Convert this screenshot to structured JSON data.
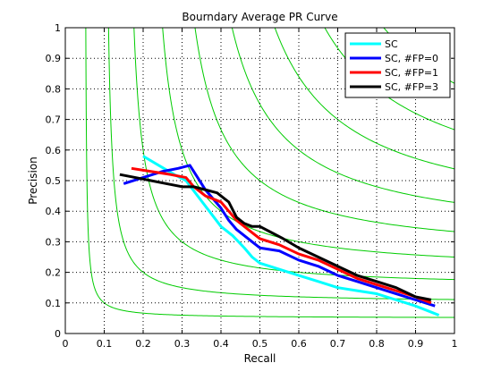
{
  "chart_data": {
    "type": "line",
    "title": "Bourndary Average PR Curve",
    "xlabel": "Recall",
    "ylabel": "Precision",
    "xlim": [
      0,
      1
    ],
    "ylim": [
      0,
      1
    ],
    "grid": true,
    "legend_position": "top-right",
    "x_ticks": [
      "0",
      "0.1",
      "0.2",
      "0.3",
      "0.4",
      "0.5",
      "0.6",
      "0.7",
      "0.8",
      "0.9",
      "1"
    ],
    "y_ticks": [
      "0",
      "0.1",
      "0.2",
      "0.3",
      "0.4",
      "0.5",
      "0.6",
      "0.7",
      "0.8",
      "0.9",
      "1"
    ],
    "iso_f_contours": {
      "color": "#00cc00",
      "values": [
        0.1,
        0.2,
        0.3,
        0.4,
        0.5,
        0.6,
        0.7,
        0.8,
        0.9
      ]
    },
    "series": [
      {
        "name": "SC",
        "color": "#00ffff",
        "points": [
          [
            0.2,
            0.58
          ],
          [
            0.24,
            0.55
          ],
          [
            0.28,
            0.52
          ],
          [
            0.31,
            0.5
          ],
          [
            0.34,
            0.45
          ],
          [
            0.37,
            0.4
          ],
          [
            0.4,
            0.35
          ],
          [
            0.43,
            0.32
          ],
          [
            0.46,
            0.28
          ],
          [
            0.48,
            0.25
          ],
          [
            0.5,
            0.23
          ],
          [
            0.55,
            0.21
          ],
          [
            0.6,
            0.19
          ],
          [
            0.65,
            0.17
          ],
          [
            0.7,
            0.15
          ],
          [
            0.75,
            0.14
          ],
          [
            0.8,
            0.13
          ],
          [
            0.85,
            0.11
          ],
          [
            0.9,
            0.09
          ],
          [
            0.94,
            0.07
          ],
          [
            0.96,
            0.06
          ]
        ]
      },
      {
        "name": "SC, #FP=0",
        "color": "#0000ff",
        "points": [
          [
            0.15,
            0.49
          ],
          [
            0.2,
            0.51
          ],
          [
            0.25,
            0.53
          ],
          [
            0.29,
            0.54
          ],
          [
            0.32,
            0.55
          ],
          [
            0.34,
            0.51
          ],
          [
            0.36,
            0.47
          ],
          [
            0.38,
            0.44
          ],
          [
            0.4,
            0.41
          ],
          [
            0.42,
            0.37
          ],
          [
            0.44,
            0.34
          ],
          [
            0.46,
            0.32
          ],
          [
            0.48,
            0.3
          ],
          [
            0.5,
            0.28
          ],
          [
            0.55,
            0.27
          ],
          [
            0.6,
            0.24
          ],
          [
            0.65,
            0.22
          ],
          [
            0.7,
            0.19
          ],
          [
            0.75,
            0.17
          ],
          [
            0.8,
            0.15
          ],
          [
            0.85,
            0.13
          ],
          [
            0.9,
            0.11
          ],
          [
            0.95,
            0.09
          ]
        ]
      },
      {
        "name": "SC, #FP=1",
        "color": "#ff0000",
        "points": [
          [
            0.17,
            0.54
          ],
          [
            0.22,
            0.53
          ],
          [
            0.27,
            0.52
          ],
          [
            0.31,
            0.51
          ],
          [
            0.33,
            0.48
          ],
          [
            0.36,
            0.45
          ],
          [
            0.4,
            0.43
          ],
          [
            0.42,
            0.4
          ],
          [
            0.44,
            0.37
          ],
          [
            0.46,
            0.35
          ],
          [
            0.48,
            0.33
          ],
          [
            0.5,
            0.31
          ],
          [
            0.55,
            0.29
          ],
          [
            0.6,
            0.26
          ],
          [
            0.65,
            0.24
          ],
          [
            0.7,
            0.21
          ],
          [
            0.75,
            0.18
          ],
          [
            0.8,
            0.16
          ],
          [
            0.85,
            0.14
          ],
          [
            0.9,
            0.12
          ],
          [
            0.94,
            0.1
          ]
        ]
      },
      {
        "name": "SC, #FP=3",
        "color": "#000000",
        "points": [
          [
            0.14,
            0.52
          ],
          [
            0.18,
            0.51
          ],
          [
            0.22,
            0.5
          ],
          [
            0.26,
            0.49
          ],
          [
            0.3,
            0.48
          ],
          [
            0.33,
            0.48
          ],
          [
            0.36,
            0.47
          ],
          [
            0.39,
            0.46
          ],
          [
            0.42,
            0.43
          ],
          [
            0.44,
            0.38
          ],
          [
            0.46,
            0.36
          ],
          [
            0.48,
            0.35
          ],
          [
            0.5,
            0.35
          ],
          [
            0.53,
            0.33
          ],
          [
            0.56,
            0.31
          ],
          [
            0.6,
            0.28
          ],
          [
            0.65,
            0.25
          ],
          [
            0.7,
            0.22
          ],
          [
            0.75,
            0.19
          ],
          [
            0.8,
            0.17
          ],
          [
            0.85,
            0.15
          ],
          [
            0.9,
            0.12
          ],
          [
            0.94,
            0.11
          ]
        ]
      }
    ]
  }
}
